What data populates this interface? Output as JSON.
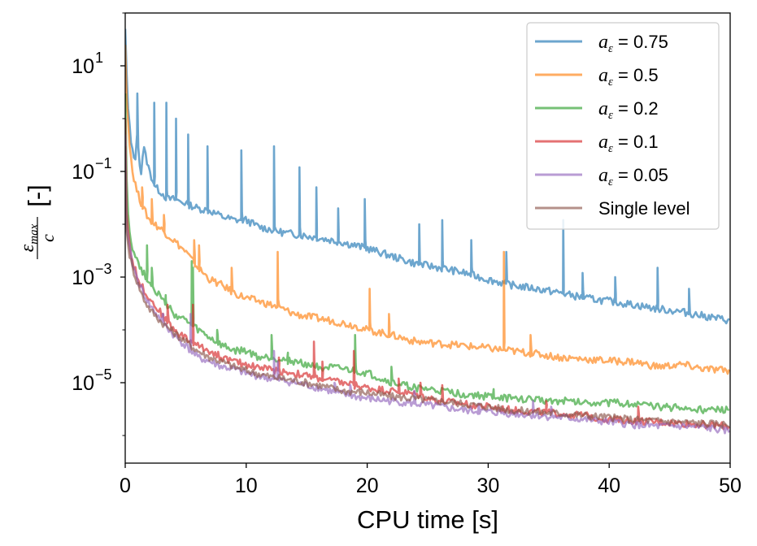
{
  "chart_data": {
    "type": "line",
    "xlabel": "CPU time [s]",
    "ylabel_fraction": {
      "numerator": "ε_max",
      "denominator": "c",
      "unit": "[-]"
    },
    "xlim": [
      0,
      50
    ],
    "ylim": [
      3e-07,
      100
    ],
    "yscale": "log",
    "x_ticks": [
      0,
      10,
      20,
      30,
      40,
      50
    ],
    "x_tick_labels": [
      "0",
      "10",
      "20",
      "30",
      "40",
      "50"
    ],
    "y_ticks": [
      10,
      0.1,
      0.001,
      1e-05
    ],
    "y_tick_labels": [
      {
        "base": "10",
        "exp": "1"
      },
      {
        "base": "10",
        "exp": "−1"
      },
      {
        "base": "10",
        "exp": "−3"
      },
      {
        "base": "10",
        "exp": "−5"
      }
    ],
    "grid": false,
    "legend_position": "top-right",
    "series": [
      {
        "name": "a_ε = 0.75",
        "legend_label": {
          "symbol": "a",
          "sub": "ε",
          "text": " = 0.75"
        },
        "color": "#1f77b4",
        "x": [
          0,
          0.2,
          0.5,
          0.8,
          1.0,
          1.3,
          1.5,
          2.0,
          2.5,
          3.0,
          3.5,
          4.0,
          5.0,
          6.0,
          7.0,
          8.0,
          9.0,
          10.0,
          11.0,
          12.0,
          13.0,
          14.0,
          15.0,
          16.0,
          17.0,
          18.0,
          20.0,
          22.0,
          24.0,
          26.0,
          28.0,
          30.0,
          32.0,
          34.0,
          36.0,
          38.0,
          40.0,
          42.0,
          44.0,
          46.0,
          48.0,
          50.0
        ],
        "y": [
          50,
          2,
          0.3,
          0.15,
          0.5,
          0.08,
          0.3,
          0.1,
          0.05,
          0.04,
          0.03,
          0.03,
          0.025,
          0.02,
          0.018,
          0.014,
          0.012,
          0.012,
          0.009,
          0.008,
          0.007,
          0.0065,
          0.006,
          0.0055,
          0.005,
          0.0045,
          0.0035,
          0.0025,
          0.0018,
          0.0015,
          0.0012,
          0.0009,
          0.0007,
          0.0006,
          0.0005,
          0.0004,
          0.00035,
          0.0003,
          0.00025,
          0.00022,
          0.00018,
          0.00015
        ],
        "spikes": [
          [
            1.0,
            3
          ],
          [
            2.4,
            2
          ],
          [
            3.4,
            2
          ],
          [
            4.2,
            1
          ],
          [
            5.2,
            0.5
          ],
          [
            6.8,
            0.3
          ],
          [
            9.6,
            0.25
          ],
          [
            12.3,
            0.3
          ],
          [
            14.4,
            0.12
          ],
          [
            15.8,
            0.05
          ],
          [
            17.6,
            0.02
          ],
          [
            19.8,
            0.03
          ],
          [
            24.3,
            0.01
          ],
          [
            26.2,
            0.012
          ],
          [
            28.6,
            0.005
          ],
          [
            31.5,
            0.003
          ],
          [
            36.2,
            0.012
          ],
          [
            37.8,
            0.0012
          ],
          [
            40.5,
            0.001
          ],
          [
            44.0,
            0.0015
          ],
          [
            46.6,
            0.0006
          ]
        ]
      },
      {
        "name": "a_ε = 0.5",
        "legend_label": {
          "symbol": "a",
          "sub": "ε",
          "text": " = 0.5"
        },
        "color": "#ff7f0e",
        "x": [
          0,
          0.1,
          0.3,
          0.6,
          1.0,
          1.5,
          2.0,
          3.0,
          4.0,
          5.0,
          6.0,
          7.0,
          8.0,
          9.0,
          10.0,
          11.0,
          12.0,
          13.0,
          14.0,
          15.0,
          17.0,
          19.0,
          20.0,
          22.0,
          24.0,
          26.0,
          28.0,
          30.0,
          32.0,
          34.0,
          36.0,
          38.0,
          40.0,
          42.0,
          44.0,
          46.0,
          48.0,
          50.0
        ],
        "y": [
          25,
          3,
          0.5,
          0.1,
          0.04,
          0.02,
          0.012,
          0.008,
          0.005,
          0.003,
          0.0015,
          0.0009,
          0.0007,
          0.0005,
          0.0004,
          0.00035,
          0.0003,
          0.00025,
          0.0002,
          0.00018,
          0.00015,
          0.00012,
          0.0001,
          8e-05,
          6e-05,
          5.5e-05,
          5e-05,
          4.5e-05,
          4e-05,
          3.5e-05,
          3e-05,
          2.8e-05,
          2.6e-05,
          2.5e-05,
          2e-05,
          2.2e-05,
          1.8e-05,
          1.7e-05
        ],
        "spikes": [
          [
            1.4,
            0.05
          ],
          [
            2.2,
            0.03
          ],
          [
            3.2,
            0.015
          ],
          [
            5.7,
            0.005
          ],
          [
            6.1,
            0.004
          ],
          [
            8.8,
            0.0015
          ],
          [
            12.6,
            0.003
          ],
          [
            20.2,
            0.0006
          ],
          [
            21.8,
            0.0002
          ],
          [
            31.3,
            0.003
          ],
          [
            33.5,
            8e-05
          ]
        ]
      },
      {
        "name": "a_ε = 0.2",
        "legend_label": {
          "symbol": "a",
          "sub": "ε",
          "text": " = 0.2"
        },
        "color": "#2ca02c",
        "x": [
          0,
          0.1,
          0.2,
          0.4,
          0.7,
          1.0,
          1.5,
          2.0,
          3.0,
          4.0,
          5.0,
          6.0,
          7.0,
          8.0,
          9.0,
          10.0,
          11.0,
          12.0,
          14.0,
          16.0,
          18.0,
          20.0,
          22.0,
          24.0,
          26.0,
          28.0,
          30.0,
          32.0,
          34.0,
          36.0,
          38.0,
          40.0,
          42.0,
          44.0,
          46.0,
          48.0,
          50.0
        ],
        "y": [
          3,
          0.1,
          0.02,
          0.006,
          0.003,
          0.002,
          0.0012,
          0.0008,
          0.0004,
          0.0002,
          0.00015,
          0.0001,
          7e-05,
          5e-05,
          4e-05,
          4e-05,
          3e-05,
          3e-05,
          2.5e-05,
          2e-05,
          1.8e-05,
          1.5e-05,
          1e-05,
          8e-06,
          7e-06,
          6e-06,
          5.5e-06,
          5e-06,
          4.8e-06,
          4.5e-06,
          4.3e-06,
          4.2e-06,
          4e-06,
          3.5e-06,
          3.3e-06,
          3e-06,
          3e-06
        ],
        "spikes": [
          [
            1.8,
            0.004
          ],
          [
            2.2,
            0.0015
          ],
          [
            3.3,
            0.0003
          ],
          [
            5.5,
            0.002
          ],
          [
            5.6,
            0.0015
          ],
          [
            7.6,
            0.0001
          ],
          [
            12.1,
            8e-05
          ],
          [
            13.4,
            3e-05
          ],
          [
            19.0,
            8e-05
          ],
          [
            22.0,
            2e-05
          ],
          [
            30.4,
            6e-06
          ]
        ]
      },
      {
        "name": "a_ε = 0.1",
        "legend_label": {
          "symbol": "a",
          "sub": "ε",
          "text": " = 0.1"
        },
        "color": "#d62728",
        "x": [
          0,
          0.1,
          0.3,
          0.6,
          1.0,
          1.5,
          2.0,
          3.0,
          4.0,
          5.0,
          6.0,
          7.0,
          8.0,
          9.0,
          10.0,
          12.0,
          14.0,
          16.0,
          18.0,
          20.0,
          22.0,
          24.0,
          26.0,
          28.0,
          30.0,
          32.0,
          34.0,
          36.0,
          38.0,
          40.0,
          42.0,
          44.0,
          46.0,
          48.0,
          50.0
        ],
        "y": [
          1,
          0.02,
          0.005,
          0.002,
          0.001,
          0.0006,
          0.0004,
          0.0002,
          0.0001,
          7e-05,
          5e-05,
          4e-05,
          3e-05,
          2.5e-05,
          2.2e-05,
          1.8e-05,
          1.5e-05,
          1.2e-05,
          1e-05,
          8e-06,
          7e-06,
          6e-06,
          4.5e-06,
          4e-06,
          3.5e-06,
          3e-06,
          2.8e-06,
          2.6e-06,
          2.4e-06,
          2e-06,
          1.9e-06,
          1.8e-06,
          1.7e-06,
          1.6e-06,
          1.5e-06
        ],
        "spikes": [
          [
            3.5,
            0.0003
          ],
          [
            5.6,
            0.0003
          ],
          [
            12.7,
            3e-05
          ],
          [
            15.6,
            6e-05
          ],
          [
            16.3,
            2.5e-05
          ],
          [
            18.9,
            4e-05
          ],
          [
            22.6,
            1.2e-05
          ],
          [
            24.4,
            1e-05
          ],
          [
            26.2,
            9e-06
          ],
          [
            34.8,
            4.5e-06
          ],
          [
            42.4,
            3.5e-06
          ]
        ]
      },
      {
        "name": "a_ε = 0.05",
        "legend_label": {
          "symbol": "a",
          "sub": "ε",
          "text": " = 0.05"
        },
        "color": "#9467bd",
        "x": [
          0,
          0.1,
          0.3,
          0.6,
          1.0,
          1.5,
          2.0,
          3.0,
          4.0,
          5.0,
          6.0,
          7.0,
          8.0,
          9.0,
          10.0,
          12.0,
          14.0,
          16.0,
          18.0,
          20.0,
          22.0,
          24.0,
          26.0,
          28.0,
          30.0,
          32.0,
          34.0,
          36.0,
          38.0,
          40.0,
          42.0,
          44.0,
          46.0,
          48.0,
          50.0
        ],
        "y": [
          0.5,
          0.01,
          0.004,
          0.0018,
          0.0009,
          0.0005,
          0.0003,
          0.00015,
          8e-05,
          5e-05,
          3e-05,
          2.5e-05,
          2e-05,
          1.8e-05,
          1.5e-05,
          1.2e-05,
          1e-05,
          8e-06,
          6e-06,
          5e-06,
          4.5e-06,
          4e-06,
          3.5e-06,
          3e-06,
          2.8e-06,
          2.6e-06,
          2.4e-06,
          2.2e-06,
          2e-06,
          1.8e-06,
          1.6e-06,
          1.5e-06,
          1.5e-06,
          1.4e-06,
          1.2e-06
        ],
        "spikes": [
          [
            3.1,
            0.0002
          ],
          [
            5.4,
            0.0002
          ],
          [
            12.3,
            4e-05
          ],
          [
            12.6,
            2.5e-05
          ],
          [
            17.3,
            1e-05
          ],
          [
            18.6,
            9e-06
          ],
          [
            23.9,
            7e-06
          ],
          [
            29.2,
            4e-06
          ],
          [
            33.7,
            4.5e-06
          ],
          [
            35.2,
            3.5e-06
          ]
        ]
      },
      {
        "name": "Single level",
        "legend_label": {
          "symbol": "",
          "sub": "",
          "text": "Single level"
        },
        "color": "#8c564b",
        "x": [
          0,
          0.1,
          0.3,
          0.6,
          1.0,
          1.5,
          2.0,
          3.0,
          4.0,
          5.0,
          6.0,
          7.0,
          8.0,
          9.0,
          10.0,
          12.0,
          14.0,
          16.0,
          18.0,
          20.0,
          22.0,
          24.0,
          26.0,
          28.0,
          30.0,
          32.0,
          34.0,
          36.0,
          38.0,
          40.0,
          42.0,
          44.0,
          46.0,
          48.0,
          50.0
        ],
        "y": [
          0.3,
          0.008,
          0.003,
          0.0015,
          0.0008,
          0.0004,
          0.00025,
          0.00014,
          9e-05,
          6e-05,
          4e-05,
          3e-05,
          2.5e-05,
          2e-05,
          1.7e-05,
          1.3e-05,
          1.1e-05,
          9e-06,
          7e-06,
          6.5e-06,
          5.5e-06,
          5e-06,
          4.5e-06,
          4e-06,
          3.5e-06,
          3e-06,
          2.8e-06,
          2.6e-06,
          2.4e-06,
          2.2e-06,
          2e-06,
          1.9e-06,
          1.8e-06,
          1.7e-06,
          1.6e-06
        ],
        "spikes": []
      }
    ]
  }
}
